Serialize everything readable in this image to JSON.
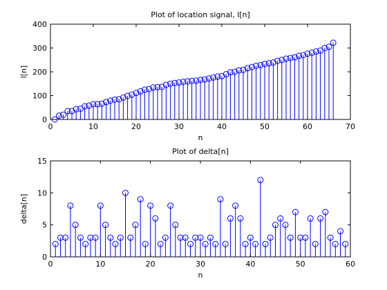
{
  "chart_data": [
    {
      "type": "stem",
      "title": "Plot of location signal, l[n]",
      "xlabel": "n",
      "ylabel": "l[n]",
      "xlim": [
        0,
        70
      ],
      "ylim": [
        0,
        400
      ],
      "xticks": [
        0,
        10,
        20,
        30,
        40,
        50,
        60,
        70
      ],
      "yticks": [
        0,
        100,
        200,
        300,
        400
      ],
      "grid": false,
      "color": "#0000ff",
      "x": [
        1,
        2,
        3,
        4,
        5,
        6,
        7,
        8,
        9,
        10,
        11,
        12,
        13,
        14,
        15,
        16,
        17,
        18,
        19,
        20,
        21,
        22,
        23,
        24,
        25,
        26,
        27,
        28,
        29,
        30,
        31,
        32,
        33,
        34,
        35,
        36,
        37,
        38,
        39,
        40,
        41,
        42,
        43,
        44,
        45,
        46,
        47,
        48,
        49,
        50,
        51,
        52,
        53,
        54,
        55,
        56,
        57,
        58,
        59,
        60,
        61,
        62,
        63,
        64,
        65,
        66
      ],
      "values": [
        0,
        16,
        20,
        35,
        35,
        43,
        45,
        55,
        58,
        64,
        64,
        66,
        73,
        79,
        83,
        85,
        92,
        99,
        104,
        111,
        118,
        125,
        128,
        134,
        136,
        137,
        145,
        150,
        153,
        155,
        158,
        160,
        162,
        163,
        166,
        168,
        172,
        176,
        180,
        182,
        190,
        198,
        200,
        206,
        208,
        215,
        220,
        225,
        228,
        233,
        236,
        239,
        246,
        250,
        255,
        258,
        261,
        267,
        270,
        276,
        280,
        285,
        289,
        300,
        305,
        322
      ]
    },
    {
      "type": "stem",
      "title": "Plot of delta[n]",
      "xlabel": "n",
      "ylabel": "delta[n]",
      "xlim": [
        0,
        60
      ],
      "ylim": [
        0,
        15
      ],
      "xticks": [
        0,
        10,
        20,
        30,
        40,
        50,
        60
      ],
      "yticks": [
        0,
        5,
        10,
        15
      ],
      "grid": false,
      "color": "#0000ff",
      "x": [
        1,
        2,
        3,
        4,
        5,
        6,
        7,
        8,
        9,
        10,
        11,
        12,
        13,
        14,
        15,
        16,
        17,
        18,
        19,
        20,
        21,
        22,
        23,
        24,
        25,
        26,
        27,
        28,
        29,
        30,
        31,
        32,
        33,
        34,
        35,
        36,
        37,
        38,
        39,
        40,
        41,
        42,
        43,
        44,
        45,
        46,
        47,
        48,
        49,
        50,
        51,
        52,
        53,
        54,
        55,
        56,
        57,
        58,
        59
      ],
      "values": [
        2,
        3,
        3,
        8,
        5,
        3,
        2,
        3,
        3,
        8,
        5,
        3,
        2,
        3,
        10,
        3,
        5,
        9,
        2,
        8,
        6,
        2,
        3,
        8,
        5,
        3,
        3,
        2,
        3,
        3,
        2,
        3,
        2,
        9,
        2,
        6,
        8,
        6,
        2,
        3,
        2,
        12,
        2,
        3,
        5,
        6,
        5,
        3,
        7,
        3,
        3,
        6,
        2,
        6,
        7,
        3,
        2,
        4,
        2
      ]
    }
  ]
}
